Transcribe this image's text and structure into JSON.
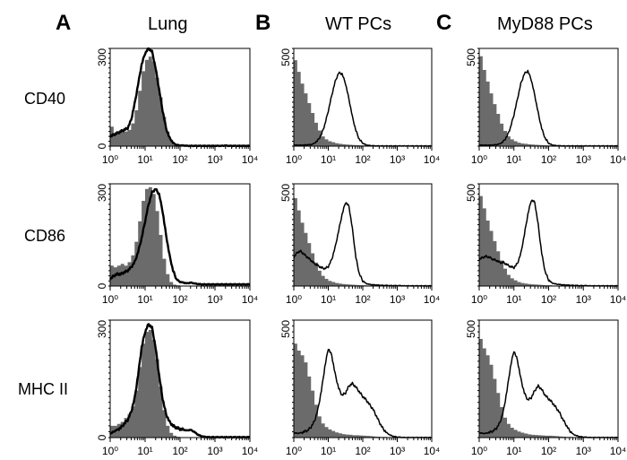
{
  "columns": [
    {
      "letter": "A",
      "title": "Lung"
    },
    {
      "letter": "B",
      "title": "WT PCs"
    },
    {
      "letter": "C",
      "title": "MyD88 PCs"
    }
  ],
  "rows": [
    {
      "label": "CD40"
    },
    {
      "label": "CD86"
    },
    {
      "label": "MHC II"
    }
  ],
  "colors": {
    "control_fill": "#6b6b6b",
    "stain_line": "#000000"
  },
  "chart_data": {
    "type": "area",
    "x_scale": "log",
    "xlim": [
      1,
      10000
    ],
    "x_tick_labels": [
      "10⁰",
      "10¹",
      "10²",
      "10³",
      "10⁴"
    ],
    "grid": false,
    "x": [
      1,
      1.26,
      1.58,
      2,
      2.5,
      3.2,
      4,
      5,
      6.3,
      7.9,
      10,
      12.6,
      15.8,
      20,
      25,
      32,
      40,
      50,
      63,
      79,
      100,
      126,
      158,
      200,
      251,
      316,
      398,
      501,
      631,
      794,
      1000,
      1259,
      1585,
      1995,
      2512,
      3162,
      3981,
      5012,
      6310,
      7943,
      10000
    ],
    "panels": [
      {
        "column": 0,
        "row": 0,
        "ylim": [
          0,
          300
        ],
        "y_tick_labels": [
          "300",
          "0"
        ],
        "gray": [
          60,
          40,
          45,
          45,
          45,
          50,
          70,
          110,
          170,
          230,
          265,
          275,
          260,
          210,
          150,
          90,
          45,
          20,
          8,
          3,
          1,
          1,
          0,
          1,
          0,
          0,
          0,
          0,
          0,
          1,
          0,
          0,
          0,
          0,
          0,
          1,
          0,
          0,
          0,
          0,
          0
        ],
        "black": [
          30,
          35,
          40,
          45,
          50,
          55,
          80,
          130,
          190,
          250,
          285,
          300,
          290,
          240,
          175,
          110,
          55,
          25,
          10,
          4,
          2,
          2,
          1,
          1,
          1,
          1,
          1,
          1,
          1,
          1,
          1,
          1,
          1,
          2,
          1,
          1,
          1,
          1,
          1,
          1,
          1
        ]
      },
      {
        "column": 1,
        "row": 0,
        "ylim": [
          0,
          500
        ],
        "y_tick_labels": [
          "500"
        ],
        "gray": [
          440,
          380,
          320,
          270,
          220,
          170,
          120,
          80,
          50,
          35,
          25,
          20,
          15,
          12,
          10,
          8,
          7,
          6,
          5,
          4,
          4,
          3,
          3,
          3,
          2,
          2,
          2,
          2,
          1,
          1,
          1,
          1,
          1,
          1,
          1,
          1,
          0,
          0,
          0,
          0,
          0
        ],
        "black": [
          5,
          5,
          5,
          6,
          7,
          8,
          15,
          30,
          60,
          110,
          180,
          260,
          330,
          375,
          370,
          320,
          240,
          150,
          80,
          35,
          15,
          6,
          3,
          2,
          1,
          1,
          1,
          1,
          1,
          1,
          1,
          1,
          1,
          1,
          1,
          1,
          1,
          1,
          1,
          1,
          1
        ]
      },
      {
        "column": 2,
        "row": 0,
        "ylim": [
          0,
          500
        ],
        "y_tick_labels": [
          "500"
        ],
        "gray": [
          460,
          390,
          330,
          270,
          215,
          165,
          115,
          78,
          50,
          35,
          25,
          18,
          14,
          12,
          10,
          8,
          7,
          6,
          5,
          4,
          4,
          3,
          3,
          3,
          2,
          2,
          2,
          2,
          1,
          1,
          1,
          1,
          1,
          1,
          1,
          1,
          0,
          0,
          0,
          0,
          0
        ],
        "black": [
          5,
          5,
          5,
          5,
          6,
          8,
          12,
          25,
          50,
          95,
          160,
          240,
          320,
          370,
          385,
          340,
          260,
          170,
          90,
          40,
          15,
          6,
          3,
          2,
          1,
          1,
          1,
          1,
          1,
          1,
          1,
          1,
          1,
          1,
          1,
          1,
          1,
          1,
          1,
          1,
          1
        ]
      },
      {
        "column": 0,
        "row": 1,
        "ylim": [
          0,
          300
        ],
        "y_tick_labels": [
          "300",
          "0"
        ],
        "gray": [
          60,
          55,
          60,
          65,
          60,
          70,
          90,
          130,
          190,
          250,
          285,
          290,
          270,
          220,
          150,
          80,
          35,
          12,
          4,
          2,
          1,
          1,
          1,
          0,
          0,
          0,
          0,
          0,
          0,
          0,
          0,
          0,
          0,
          0,
          0,
          0,
          0,
          0,
          0,
          0,
          0
        ],
        "black": [
          20,
          30,
          35,
          35,
          40,
          45,
          55,
          70,
          100,
          140,
          190,
          240,
          275,
          285,
          270,
          220,
          150,
          90,
          45,
          20,
          12,
          10,
          8,
          10,
          8,
          6,
          5,
          5,
          5,
          5,
          5,
          5,
          5,
          5,
          5,
          5,
          5,
          5,
          5,
          5,
          5
        ]
      },
      {
        "column": 1,
        "row": 1,
        "ylim": [
          0,
          500
        ],
        "y_tick_labels": [
          "500"
        ],
        "gray": [
          430,
          370,
          310,
          260,
          210,
          160,
          115,
          75,
          50,
          35,
          25,
          20,
          15,
          12,
          10,
          8,
          7,
          6,
          5,
          4,
          4,
          3,
          3,
          3,
          2,
          2,
          2,
          2,
          1,
          1,
          1,
          1,
          1,
          1,
          1,
          1,
          0,
          0,
          0,
          0,
          0
        ],
        "black": [
          140,
          165,
          170,
          155,
          140,
          125,
          110,
          100,
          90,
          85,
          95,
          130,
          190,
          270,
          350,
          410,
          390,
          280,
          140,
          60,
          25,
          12,
          8,
          6,
          5,
          4,
          3,
          3,
          2,
          2,
          2,
          2,
          1,
          1,
          1,
          1,
          1,
          1,
          1,
          1,
          1
        ]
      },
      {
        "column": 2,
        "row": 1,
        "ylim": [
          0,
          500
        ],
        "y_tick_labels": [
          "500"
        ],
        "gray": [
          440,
          380,
          320,
          270,
          220,
          170,
          125,
          85,
          55,
          38,
          28,
          20,
          15,
          12,
          10,
          8,
          7,
          6,
          5,
          4,
          4,
          3,
          3,
          3,
          2,
          2,
          2,
          2,
          1,
          1,
          1,
          1,
          1,
          1,
          1,
          1,
          0,
          0,
          0,
          0,
          0
        ],
        "black": [
          130,
          140,
          145,
          140,
          130,
          125,
          115,
          115,
          105,
          95,
          90,
          110,
          160,
          250,
          350,
          420,
          410,
          300,
          160,
          70,
          30,
          15,
          10,
          8,
          6,
          5,
          4,
          3,
          3,
          2,
          2,
          2,
          1,
          1,
          1,
          1,
          1,
          1,
          1,
          1,
          1
        ]
      },
      {
        "column": 0,
        "row": 2,
        "ylim": [
          0,
          300
        ],
        "y_tick_labels": [
          "300",
          "0"
        ],
        "gray": [
          30,
          30,
          35,
          40,
          50,
          60,
          80,
          120,
          180,
          240,
          270,
          275,
          250,
          200,
          130,
          70,
          30,
          12,
          5,
          2,
          1,
          0,
          0,
          0,
          0,
          0,
          0,
          0,
          0,
          0,
          0,
          0,
          0,
          0,
          0,
          0,
          0,
          0,
          0,
          0,
          0
        ],
        "black": [
          10,
          15,
          20,
          25,
          35,
          45,
          65,
          100,
          160,
          230,
          270,
          290,
          280,
          230,
          160,
          100,
          60,
          40,
          30,
          25,
          22,
          20,
          18,
          20,
          15,
          8,
          4,
          2,
          1,
          1,
          1,
          1,
          1,
          1,
          1,
          1,
          1,
          1,
          1,
          1,
          1
        ]
      },
      {
        "column": 1,
        "row": 2,
        "ylim": [
          0,
          500
        ],
        "y_tick_labels": [
          "500"
        ],
        "gray": [
          400,
          370,
          350,
          320,
          260,
          200,
          140,
          90,
          60,
          45,
          35,
          28,
          22,
          18,
          15,
          13,
          12,
          10,
          10,
          9,
          8,
          7,
          6,
          5,
          4,
          3,
          3,
          2,
          2,
          2,
          1,
          1,
          1,
          1,
          1,
          0,
          0,
          0,
          0,
          0,
          0
        ],
        "black": [
          20,
          18,
          20,
          25,
          30,
          45,
          70,
          120,
          200,
          300,
          380,
          350,
          270,
          210,
          180,
          190,
          220,
          230,
          215,
          195,
          175,
          160,
          140,
          120,
          90,
          60,
          35,
          20,
          10,
          5,
          2,
          1,
          0,
          0,
          0,
          0,
          0,
          0,
          0,
          0,
          0
        ]
      },
      {
        "column": 2,
        "row": 2,
        "ylim": [
          0,
          500
        ],
        "y_tick_labels": [
          "500"
        ],
        "gray": [
          420,
          380,
          350,
          310,
          250,
          190,
          130,
          85,
          58,
          42,
          33,
          26,
          21,
          17,
          14,
          12,
          11,
          10,
          9,
          8,
          8,
          7,
          6,
          5,
          4,
          3,
          3,
          2,
          2,
          2,
          1,
          1,
          1,
          1,
          1,
          0,
          0,
          0,
          0,
          0,
          0
        ],
        "black": [
          20,
          18,
          18,
          22,
          28,
          40,
          65,
          115,
          200,
          300,
          370,
          330,
          250,
          190,
          160,
          170,
          200,
          220,
          205,
          180,
          165,
          150,
          130,
          110,
          80,
          55,
          30,
          15,
          8,
          4,
          2,
          1,
          0,
          0,
          0,
          0,
          0,
          0,
          0,
          0,
          0
        ]
      }
    ]
  }
}
